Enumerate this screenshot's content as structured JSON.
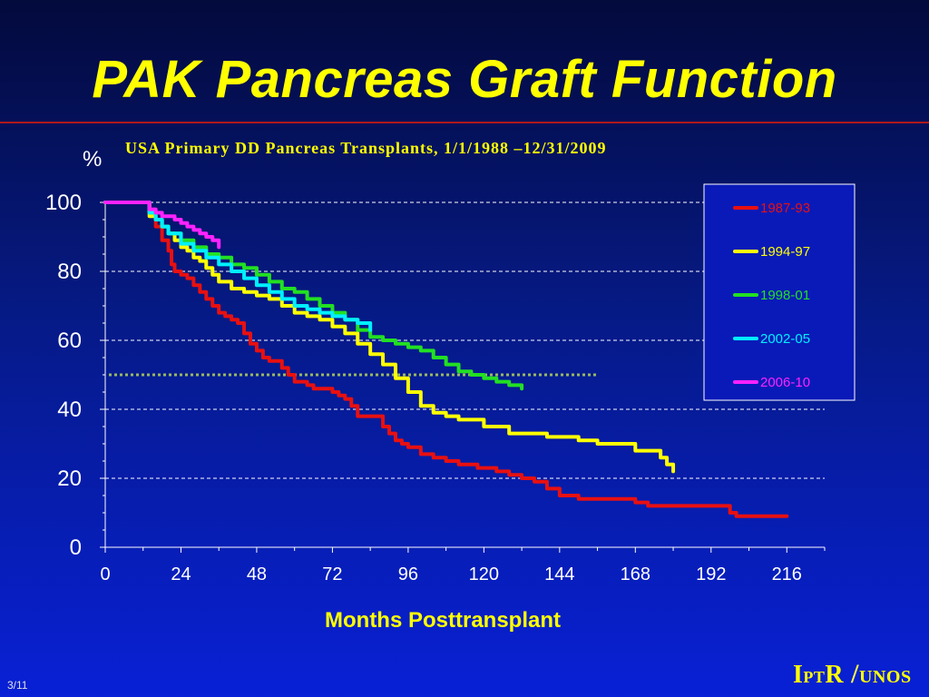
{
  "slide": {
    "title": "PAK Pancreas Graft Function",
    "footer_logo": "IPTR/UNOS",
    "page_number": "3/11",
    "title_color": "#ffff00",
    "rule_color": "#b01818"
  },
  "chart_data": {
    "type": "line",
    "subtitle": "USA Primary DD Pancreas Transplants, 1/1/1988 –12/31/2009",
    "ylabel": "%",
    "xlabel": "Months Posttransplant",
    "xlim": [
      0,
      228
    ],
    "ylim": [
      0,
      100
    ],
    "x_ticks": [
      0,
      24,
      48,
      72,
      96,
      120,
      144,
      168,
      192,
      216
    ],
    "y_ticks": [
      0,
      20,
      40,
      60,
      80,
      100
    ],
    "grid": "horizontal dashed",
    "legend_position": "top-right",
    "reference_line": {
      "y": 50,
      "x_start": 0,
      "x_end": 156,
      "color": "#9ab860",
      "style": "dotted"
    },
    "series": [
      {
        "name": "1987-93",
        "color": "#e81010",
        "x": [
          0,
          12,
          14,
          16,
          18,
          20,
          21,
          22,
          24,
          26,
          28,
          30,
          32,
          34,
          36,
          38,
          40,
          42,
          44,
          46,
          48,
          50,
          52,
          56,
          58,
          60,
          64,
          66,
          72,
          74,
          76,
          78,
          80,
          84,
          88,
          90,
          92,
          94,
          96,
          100,
          104,
          108,
          112,
          118,
          124,
          128,
          132,
          136,
          140,
          144,
          150,
          160,
          168,
          172,
          176,
          180,
          188,
          196,
          198,
          200,
          204,
          216
        ],
        "y": [
          100,
          100,
          97,
          93,
          89,
          86,
          82,
          80,
          79,
          78,
          76,
          74,
          72,
          70,
          68,
          67,
          66,
          65,
          62,
          59,
          57,
          55,
          54,
          52,
          50,
          48,
          47,
          46,
          45,
          44,
          43,
          41,
          38,
          38,
          35,
          33,
          31,
          30,
          29,
          27,
          26,
          25,
          24,
          23,
          22,
          21,
          20,
          19,
          17,
          15,
          14,
          14,
          13,
          12,
          12,
          12,
          12,
          12,
          10,
          9,
          9,
          9
        ]
      },
      {
        "name": "1994-97",
        "color": "#ffff00",
        "x": [
          0,
          12,
          14,
          16,
          18,
          20,
          22,
          24,
          26,
          28,
          30,
          32,
          34,
          36,
          40,
          44,
          48,
          52,
          56,
          60,
          64,
          68,
          72,
          76,
          80,
          84,
          88,
          92,
          96,
          100,
          104,
          108,
          112,
          120,
          128,
          132,
          140,
          150,
          156,
          168,
          176,
          178,
          180
        ],
        "y": [
          100,
          100,
          96,
          95,
          93,
          91,
          89,
          87,
          86,
          84,
          83,
          81,
          79,
          77,
          75,
          74,
          73,
          72,
          70,
          68,
          67,
          66,
          64,
          62,
          59,
          56,
          53,
          49,
          45,
          41,
          39,
          38,
          37,
          35,
          33,
          33,
          32,
          31,
          30,
          28,
          26,
          24,
          22
        ]
      },
      {
        "name": "1998-01",
        "color": "#22e022",
        "x": [
          0,
          12,
          14,
          16,
          18,
          20,
          24,
          28,
          32,
          36,
          40,
          44,
          48,
          52,
          56,
          60,
          64,
          68,
          72,
          76,
          80,
          84,
          88,
          92,
          96,
          100,
          104,
          108,
          112,
          116,
          120,
          124,
          128,
          132
        ],
        "y": [
          100,
          100,
          97,
          95,
          93,
          91,
          89,
          87,
          85,
          84,
          82,
          81,
          79,
          77,
          75,
          74,
          72,
          70,
          68,
          66,
          63,
          61,
          60,
          59,
          58,
          57,
          55,
          53,
          51,
          50,
          49,
          48,
          47,
          46
        ]
      },
      {
        "name": "2002-05",
        "color": "#00f0ff",
        "x": [
          0,
          12,
          14,
          16,
          18,
          20,
          24,
          28,
          32,
          36,
          40,
          44,
          48,
          52,
          56,
          60,
          64,
          68,
          72,
          76,
          80,
          84
        ],
        "y": [
          100,
          100,
          97,
          95,
          93,
          91,
          88,
          86,
          84,
          82,
          80,
          78,
          76,
          74,
          72,
          70,
          69,
          68,
          67,
          66,
          65,
          63
        ]
      },
      {
        "name": "2006-10",
        "color": "#ff22ff",
        "x": [
          0,
          12,
          14,
          16,
          18,
          20,
          22,
          24,
          26,
          28,
          30,
          32,
          34,
          36
        ],
        "y": [
          100,
          100,
          98,
          97,
          96,
          96,
          95,
          94,
          93,
          92,
          91,
          90,
          89,
          87
        ]
      }
    ]
  }
}
